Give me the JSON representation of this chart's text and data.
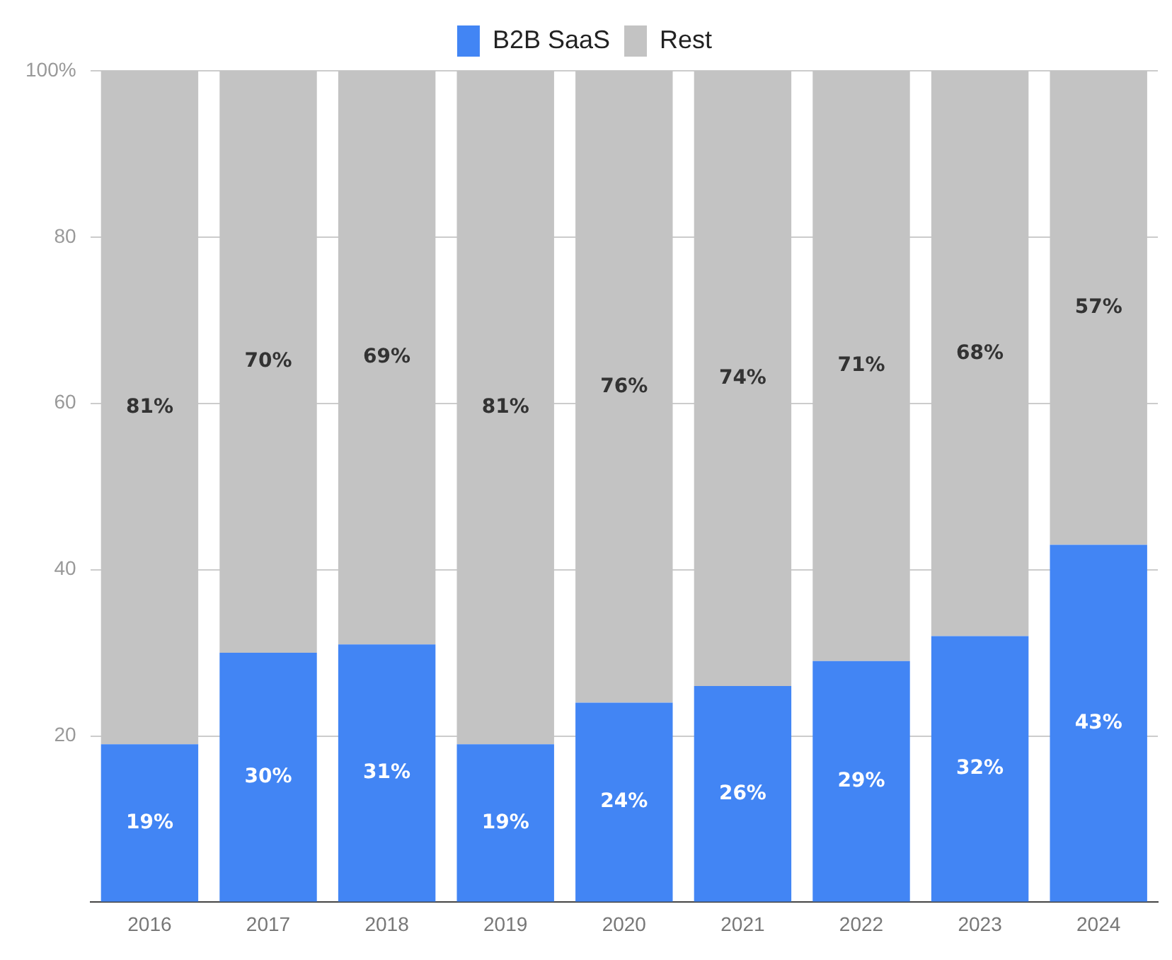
{
  "chart_data": {
    "type": "bar",
    "stacked": true,
    "categories": [
      "2016",
      "2017",
      "2018",
      "2019",
      "2020",
      "2021",
      "2022",
      "2023",
      "2024"
    ],
    "series": [
      {
        "name": "B2B SaaS",
        "color": "#4285f4",
        "values": [
          19,
          30,
          31,
          19,
          24,
          26,
          29,
          32,
          43
        ],
        "value_labels": [
          "19%",
          "30%",
          "31%",
          "19%",
          "24%",
          "26%",
          "29%",
          "32%",
          "43%"
        ]
      },
      {
        "name": "Rest",
        "color": "#c3c3c3",
        "values": [
          81,
          70,
          69,
          81,
          76,
          74,
          71,
          68,
          57
        ],
        "value_labels": [
          "81%",
          "70%",
          "69%",
          "81%",
          "76%",
          "74%",
          "71%",
          "68%",
          "57%"
        ]
      }
    ],
    "ylim": [
      0,
      100
    ],
    "yticks": [
      {
        "value": 0,
        "label": null
      },
      20,
      40,
      60,
      80,
      {
        "value": 100,
        "label": "100%"
      }
    ],
    "grid": "y",
    "legend": "top"
  }
}
